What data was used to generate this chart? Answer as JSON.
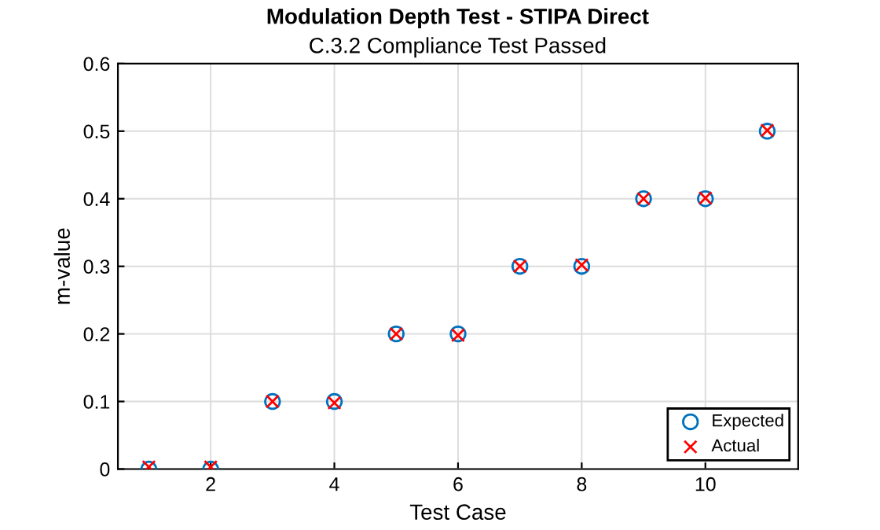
{
  "chart_data": {
    "type": "scatter",
    "title": "Modulation Depth Test - STIPA Direct",
    "subtitle": "C.3.2 Compliance Test Passed",
    "xlabel": "Test Case",
    "ylabel": "m-value",
    "x": [
      1,
      2,
      3,
      4,
      5,
      6,
      7,
      8,
      9,
      10,
      11
    ],
    "series": [
      {
        "name": "Expected",
        "color": "#0072bd",
        "marker": "circle",
        "values": [
          0,
          0,
          0.1,
          0.1,
          0.2,
          0.2,
          0.3,
          0.3,
          0.4,
          0.4,
          0.5
        ]
      },
      {
        "name": "Actual",
        "color": "#ff0000",
        "marker": "cross",
        "values": [
          0.003,
          0.003,
          0.1,
          0.098,
          0.2,
          0.198,
          0.3,
          0.302,
          0.4,
          0.401,
          0.501
        ]
      }
    ],
    "xlim": [
      0.5,
      11.5
    ],
    "xticks": [
      2,
      4,
      6,
      8,
      10
    ],
    "ylim": [
      0,
      0.6
    ],
    "yticks": [
      0,
      0.1,
      0.2,
      0.3,
      0.4,
      0.5,
      0.6
    ],
    "grid": true,
    "legend": "bottom right"
  }
}
